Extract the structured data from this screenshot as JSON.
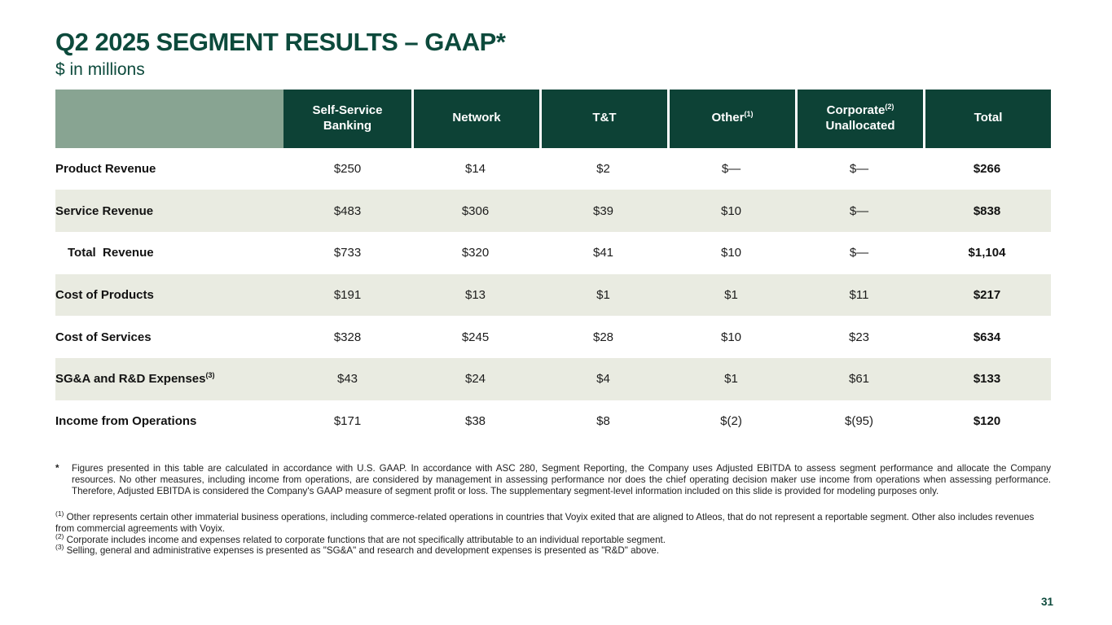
{
  "slide": {
    "title": "Q2 2025 SEGMENT RESULTS – GAAP*",
    "subtitle": "$ in millions",
    "page_number": "31"
  },
  "colors": {
    "title_green": "#0d4a3c",
    "header_dark_green": "#0d4236",
    "corner_sage": "#88a492",
    "row_stripe": "#e9ebe1",
    "body_text": "#1c1c1c"
  },
  "table": {
    "columns": [
      {
        "line1": "Self-Service",
        "sup": "",
        "line2": "Banking"
      },
      {
        "line1": "Network",
        "sup": "",
        "line2": ""
      },
      {
        "line1": "T&T",
        "sup": "",
        "line2": ""
      },
      {
        "line1": "Other",
        "sup": "(1)",
        "line2": ""
      },
      {
        "line1": "Corporate",
        "sup": "(2)",
        "line2": "Unallocated"
      },
      {
        "line1": "Total",
        "sup": "",
        "line2": ""
      }
    ],
    "rows": [
      {
        "label": "Product Revenue",
        "sup": "",
        "indent": false,
        "striped": false,
        "values": [
          "$250",
          "$14",
          "$2",
          "$—",
          "$—",
          "$266"
        ]
      },
      {
        "label": "Service Revenue",
        "sup": "",
        "indent": false,
        "striped": true,
        "values": [
          "$483",
          "$306",
          "$39",
          "$10",
          "$—",
          "$838"
        ]
      },
      {
        "label": "Total  Revenue",
        "sup": "",
        "indent": true,
        "striped": false,
        "values": [
          "$733",
          "$320",
          "$41",
          "$10",
          "$—",
          "$1,104"
        ]
      },
      {
        "label": "Cost of Products",
        "sup": "",
        "indent": false,
        "striped": true,
        "values": [
          "$191",
          "$13",
          "$1",
          "$1",
          "$11",
          "$217"
        ]
      },
      {
        "label": "Cost of Services",
        "sup": "",
        "indent": false,
        "striped": false,
        "values": [
          "$328",
          "$245",
          "$28",
          "$10",
          "$23",
          "$634"
        ]
      },
      {
        "label": "SG&A and R&D Expenses",
        "sup": "(3)",
        "indent": false,
        "striped": true,
        "values": [
          "$43",
          "$24",
          "$4",
          "$1",
          "$61",
          "$133"
        ]
      },
      {
        "label": "Income from Operations",
        "sup": "",
        "indent": false,
        "striped": false,
        "values": [
          "$171",
          "$38",
          "$8",
          "$(2)",
          "$(95)",
          "$120"
        ]
      }
    ]
  },
  "footnotes": {
    "star": {
      "marker": "*",
      "text": "Figures presented in this table are calculated in accordance with U.S. GAAP. In accordance with ASC 280, Segment Reporting, the Company uses Adjusted EBITDA to assess segment performance and allocate the Company resources. No other measures, including income from operations, are considered by management in assessing performance nor does the chief operating decision maker use income from operations when assessing performance. Therefore, Adjusted EBITDA is considered the Company's GAAP measure of segment profit or loss. The supplementary segment-level information included on this slide is provided for modeling purposes only."
    },
    "numbered": [
      {
        "marker": "(1)",
        "text": "Other represents certain other immaterial business operations, including commerce-related operations in countries that Voyix exited that are aligned to Atleos, that do not represent a reportable segment. Other also includes revenues from commercial agreements with Voyix."
      },
      {
        "marker": "(2)",
        "text": "Corporate includes income and expenses related to corporate functions that are not specifically attributable to an individual reportable segment."
      },
      {
        "marker": "(3)",
        "text": "Selling, general and administrative expenses is presented as \"SG&A\" and research and development expenses is presented as \"R&D\" above."
      }
    ]
  }
}
